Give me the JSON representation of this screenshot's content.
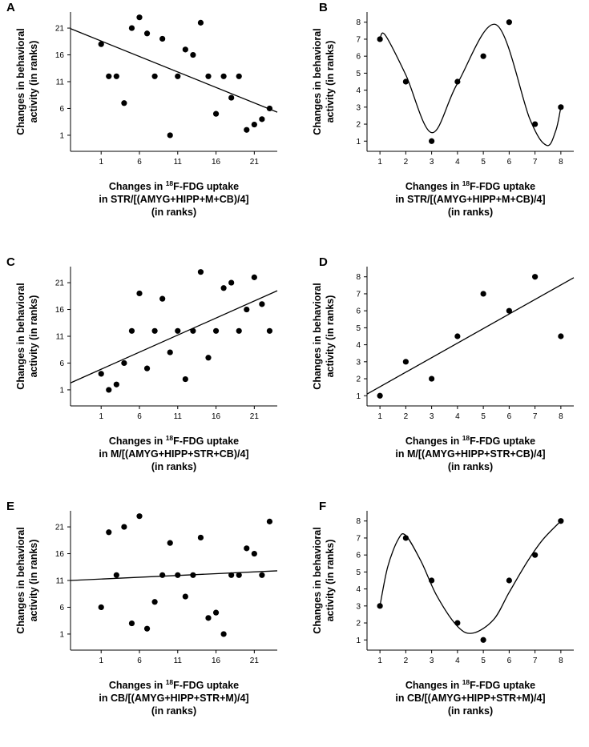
{
  "figure": {
    "panels": [
      "A",
      "B",
      "C",
      "D",
      "E",
      "F"
    ]
  },
  "chart_data": [
    {
      "id": "A",
      "type": "scatter",
      "fit": "linear",
      "fit_line": [
        [
          -3,
          20.9
        ],
        [
          24,
          5.3
        ]
      ],
      "x": [
        1,
        2,
        3,
        4,
        5,
        6,
        7,
        8,
        9,
        10,
        11,
        12,
        13,
        14,
        15,
        16,
        17,
        18,
        19,
        20,
        21,
        22,
        23
      ],
      "y": [
        18,
        12,
        12,
        7,
        21,
        23,
        20,
        12,
        19,
        1,
        12,
        17,
        16,
        22,
        12,
        5,
        12,
        8,
        12,
        2,
        3,
        4,
        6
      ],
      "xlim": [
        -3,
        24
      ],
      "ylim": [
        -2,
        24
      ],
      "xticks": [
        1,
        6,
        11,
        16,
        21
      ],
      "yticks": [
        1,
        6,
        11,
        16,
        21
      ],
      "ylabel_lines": [
        "Changes in behavioral",
        "activity (in ranks)"
      ],
      "xlabel_lines": [
        "Changes in |18|F-FDG uptake",
        "in STR/[(AMYG+HIPP+M+CB)/4]",
        "(in ranks)"
      ]
    },
    {
      "id": "B",
      "type": "scatter",
      "fit": "curve",
      "fit_curve": [
        [
          1,
          7
        ],
        [
          1.2,
          7.25
        ],
        [
          2,
          4.9
        ],
        [
          3,
          1.5
        ],
        [
          4,
          4.4
        ],
        [
          5.5,
          7.85
        ],
        [
          6.8,
          2.3
        ],
        [
          7.45,
          0.75
        ],
        [
          7.8,
          1.6
        ],
        [
          8,
          3
        ]
      ],
      "x": [
        1,
        2,
        3,
        4,
        5,
        6,
        7,
        8
      ],
      "y": [
        7,
        4.5,
        1,
        4.5,
        6,
        8,
        2,
        3
      ],
      "xlim": [
        0.5,
        8.5
      ],
      "ylim": [
        0.4,
        8.6
      ],
      "xticks": [
        1,
        2,
        3,
        4,
        5,
        6,
        7,
        8
      ],
      "yticks": [
        1,
        2,
        3,
        4,
        5,
        6,
        7,
        8
      ],
      "ylabel_lines": [
        "Changes in behavioral",
        "activity (in ranks)"
      ],
      "xlabel_lines": [
        "Changes in |18|F-FDG uptake",
        "in STR/[(AMYG+HIPP+M+CB)/4]",
        "(in ranks)"
      ]
    },
    {
      "id": "C",
      "type": "scatter",
      "fit": "linear",
      "fit_line": [
        [
          -3,
          2.3
        ],
        [
          24,
          19.5
        ]
      ],
      "x": [
        1,
        2,
        3,
        4,
        5,
        6,
        7,
        8,
        9,
        10,
        11,
        12,
        13,
        14,
        15,
        16,
        17,
        18,
        19,
        20,
        21,
        22,
        23
      ],
      "y": [
        4,
        1,
        2,
        6,
        12,
        19,
        5,
        12,
        18,
        8,
        12,
        3,
        12,
        23,
        7,
        12,
        20,
        21,
        12,
        16,
        22,
        17,
        12
      ],
      "xlim": [
        -3,
        24
      ],
      "ylim": [
        -2,
        24
      ],
      "xticks": [
        1,
        6,
        11,
        16,
        21
      ],
      "yticks": [
        1,
        6,
        11,
        16,
        21
      ],
      "ylabel_lines": [
        "Changes in behavioral",
        "activity (in ranks)"
      ],
      "xlabel_lines": [
        "Changes in |18|F-FDG uptake",
        "in M/[(AMYG+HIPP+STR+CB)/4]",
        "(in ranks)"
      ]
    },
    {
      "id": "D",
      "type": "scatter",
      "fit": "linear",
      "fit_line": [
        [
          0.5,
          1.1
        ],
        [
          8.5,
          7.95
        ]
      ],
      "x": [
        1,
        2,
        3,
        4,
        5,
        6,
        7,
        8
      ],
      "y": [
        1,
        3,
        2,
        4.5,
        7,
        6,
        8,
        4.5
      ],
      "xlim": [
        0.5,
        8.5
      ],
      "ylim": [
        0.4,
        8.6
      ],
      "xticks": [
        1,
        2,
        3,
        4,
        5,
        6,
        7,
        8
      ],
      "yticks": [
        1,
        2,
        3,
        4,
        5,
        6,
        7,
        8
      ],
      "ylabel_lines": [
        "Changes in behavioral",
        "activity (in ranks)"
      ],
      "xlabel_lines": [
        "Changes in |18|F-FDG uptake",
        "in M/[(AMYG+HIPP+STR+CB)/4]",
        "(in ranks)"
      ]
    },
    {
      "id": "E",
      "type": "scatter",
      "fit": "linear",
      "fit_line": [
        [
          -3,
          11
        ],
        [
          24,
          12.8
        ]
      ],
      "x": [
        1,
        2,
        3,
        4,
        5,
        6,
        7,
        8,
        9,
        10,
        11,
        12,
        13,
        14,
        15,
        16,
        17,
        18,
        19,
        20,
        21,
        22,
        23
      ],
      "y": [
        6,
        20,
        12,
        21,
        3,
        23,
        2,
        7,
        12,
        18,
        12,
        8,
        12,
        19,
        4,
        5,
        1,
        12,
        12,
        17,
        16,
        12,
        22
      ],
      "xlim": [
        -3,
        24
      ],
      "ylim": [
        -2,
        24
      ],
      "xticks": [
        1,
        6,
        11,
        16,
        21
      ],
      "yticks": [
        1,
        6,
        11,
        16,
        21
      ],
      "ylabel_lines": [
        "Changes in behavioral",
        "activity (in ranks)"
      ],
      "xlabel_lines": [
        "Changes in |18|F-FDG uptake",
        "in CB/[(AMYG+HIPP+STR+M)/4]",
        "(in ranks)"
      ]
    },
    {
      "id": "F",
      "type": "scatter",
      "fit": "curve",
      "fit_curve": [
        [
          1,
          3
        ],
        [
          1.3,
          5.3
        ],
        [
          1.7,
          6.9
        ],
        [
          2,
          7.15
        ],
        [
          2.6,
          5.6
        ],
        [
          3.2,
          3.6
        ],
        [
          4,
          1.8
        ],
        [
          4.6,
          1.4
        ],
        [
          5.4,
          2.2
        ],
        [
          6,
          3.8
        ],
        [
          6.7,
          5.6
        ],
        [
          7.3,
          6.9
        ],
        [
          8,
          8
        ]
      ],
      "x": [
        1,
        2,
        3,
        4,
        5,
        6,
        7,
        8
      ],
      "y": [
        3,
        7,
        4.5,
        2,
        1,
        4.5,
        6,
        8
      ],
      "xlim": [
        0.5,
        8.5
      ],
      "ylim": [
        0.4,
        8.6
      ],
      "xticks": [
        1,
        2,
        3,
        4,
        5,
        6,
        7,
        8
      ],
      "yticks": [
        1,
        2,
        3,
        4,
        5,
        6,
        7,
        8
      ],
      "ylabel_lines": [
        "Changes in behavioral",
        "activity (in ranks)"
      ],
      "xlabel_lines": [
        "Changes in |18|F-FDG uptake",
        "in CB/[(AMYG+HIPP+STR+M)/4]",
        "(in ranks)"
      ]
    }
  ]
}
